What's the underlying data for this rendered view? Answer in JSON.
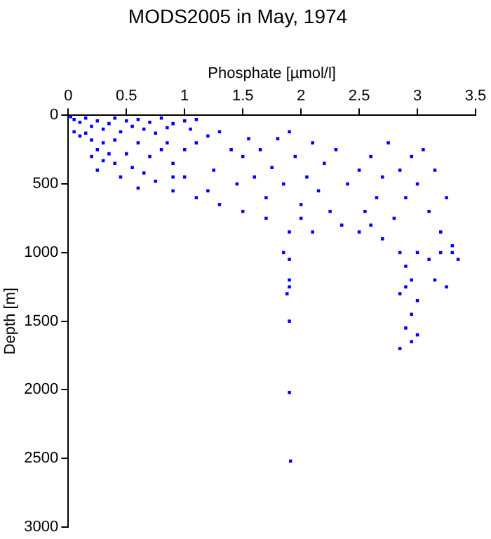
{
  "chart_data": {
    "type": "scatter",
    "title": "MODS2005 in May, 1974",
    "xlabel": "Phosphate [µmol/l]",
    "ylabel": "Depth [m]",
    "xlim": [
      0,
      3.5
    ],
    "xticks": [
      0,
      0.5,
      1,
      1.5,
      2,
      2.5,
      3,
      3.5
    ],
    "ylim": [
      3000,
      0
    ],
    "yticks": [
      0,
      500,
      1000,
      1500,
      2000,
      2500,
      3000
    ],
    "grid": false,
    "legend": false,
    "marker": "square",
    "series": [
      {
        "color": "#0000ff",
        "x": [
          0.02,
          0.05,
          0.1,
          0.15,
          0.2,
          0.25,
          0.3,
          0.35,
          0.4,
          0.45,
          0.5,
          0.55,
          0.6,
          0.65,
          0.7,
          0.75,
          0.8,
          0.85,
          0.9,
          1.0,
          1.05,
          1.1,
          0.05,
          0.1,
          0.2,
          0.15,
          0.3,
          0.25,
          0.35,
          0.4,
          0.2,
          0.3,
          0.25,
          0.4,
          0.45,
          0.5,
          0.6,
          0.55,
          0.65,
          0.7,
          0.8,
          0.75,
          0.9,
          0.85,
          1.0,
          0.6,
          0.9,
          1.0,
          1.1,
          1.2,
          1.25,
          1.3,
          1.4,
          1.45,
          1.5,
          1.55,
          1.6,
          1.65,
          1.7,
          1.75,
          1.8,
          1.85,
          1.9,
          1.95,
          2.0,
          2.05,
          2.1,
          2.15,
          2.2,
          2.25,
          2.3,
          2.4,
          2.5,
          2.55,
          2.6,
          2.65,
          2.7,
          2.75,
          2.8,
          2.85,
          2.9,
          2.95,
          3.0,
          3.05,
          3.1,
          3.15,
          3.2,
          3.25,
          3.3,
          3.2,
          3.35,
          3.25,
          3.1,
          3.15,
          3.3,
          3.0,
          2.85,
          2.9,
          2.95,
          2.85,
          3.0,
          2.95,
          2.9,
          2.95,
          2.85,
          3.0,
          2.9,
          1.85,
          1.9,
          1.9,
          1.9,
          1.88,
          1.9,
          1.9,
          1.91,
          1.9,
          1.5,
          1.3,
          1.2,
          2.0,
          2.1,
          1.1,
          0.9,
          1.7,
          2.35,
          2.5,
          2.7,
          2.6
        ],
        "values": [
          10,
          30,
          50,
          20,
          80,
          40,
          100,
          60,
          20,
          120,
          40,
          80,
          30,
          100,
          50,
          130,
          20,
          90,
          60,
          40,
          100,
          30,
          120,
          150,
          180,
          130,
          200,
          250,
          280,
          180,
          300,
          330,
          400,
          350,
          450,
          280,
          200,
          380,
          420,
          300,
          250,
          480,
          350,
          200,
          250,
          530,
          550,
          450,
          200,
          150,
          400,
          120,
          250,
          500,
          300,
          170,
          450,
          250,
          600,
          380,
          170,
          500,
          120,
          300,
          650,
          450,
          200,
          550,
          350,
          700,
          250,
          500,
          400,
          700,
          300,
          600,
          450,
          200,
          750,
          400,
          600,
          300,
          500,
          250,
          700,
          400,
          850,
          600,
          1000,
          1000,
          1050,
          1250,
          1050,
          1200,
          950,
          1000,
          1000,
          1100,
          1200,
          1300,
          1350,
          1450,
          1550,
          1650,
          1700,
          1600,
          1250,
          1000,
          1050,
          1200,
          1250,
          1300,
          1500,
          2020,
          2520,
          850,
          700,
          650,
          550,
          750,
          850,
          600,
          450,
          750,
          800,
          850,
          900,
          800
        ]
      }
    ]
  }
}
